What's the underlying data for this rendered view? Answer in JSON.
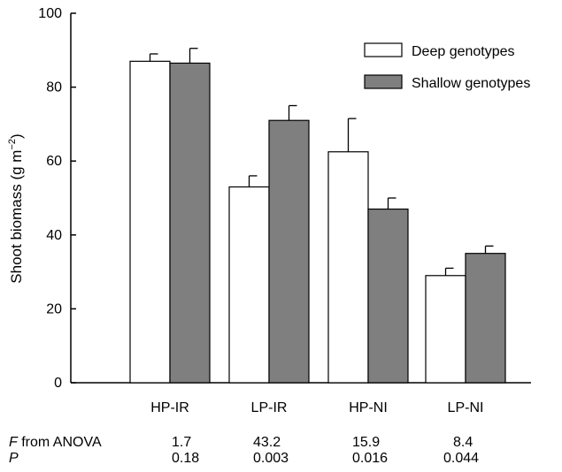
{
  "chart_data": {
    "type": "bar",
    "categories": [
      "HP-IR",
      "LP-IR",
      "HP-NI",
      "LP-NI"
    ],
    "series": [
      {
        "name": "Deep genotypes",
        "values": [
          87,
          53,
          62.5,
          29
        ],
        "errors": [
          2,
          3,
          9,
          2
        ],
        "color": "#ffffff"
      },
      {
        "name": "Shallow genotypes",
        "values": [
          86.5,
          71,
          47,
          35
        ],
        "errors": [
          4,
          4,
          3,
          2
        ],
        "color": "#7f7f7f"
      }
    ],
    "ylabel_main": "Shoot biomass (g m",
    "ylabel_sup": "−2",
    "ylabel_close": ")",
    "ylim": [
      0,
      100
    ],
    "yticks": [
      "0",
      "20",
      "40",
      "60",
      "80",
      "100"
    ],
    "legend_position": "top-right",
    "grid": false
  },
  "stats": {
    "f_label_italic": "F",
    "f_label_rest": " from ANOVA",
    "p_label": "P",
    "f_values": [
      "1.7",
      "43.2",
      "15.9",
      "8.4"
    ],
    "p_values": [
      "0.18",
      "0.003",
      "0.016",
      "0.044"
    ]
  }
}
